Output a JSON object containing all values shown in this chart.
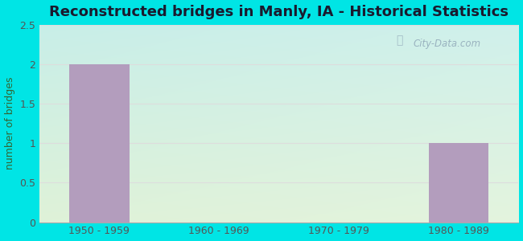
{
  "title": "Reconstructed bridges in Manly, IA - Historical Statistics",
  "categories": [
    "1950 - 1959",
    "1960 - 1969",
    "1970 - 1979",
    "1980 - 1989"
  ],
  "values": [
    2,
    0,
    0,
    1
  ],
  "bar_color": "#b39dbd",
  "ylabel": "number of bridges",
  "ylim": [
    0,
    2.5
  ],
  "yticks": [
    0,
    0.5,
    1,
    1.5,
    2,
    2.5
  ],
  "background_outer": "#00e5e5",
  "grad_top_left": "#c8eee8",
  "grad_bottom_right": "#dff2d8",
  "title_fontsize": 13,
  "ylabel_fontsize": 9,
  "tick_fontsize": 9,
  "title_color": "#1a1a2e",
  "ylabel_color": "#336633",
  "tick_color": "#555555",
  "watermark_text": "City-Data.com",
  "watermark_color": "#90a8b8",
  "grid_color": "#dddddd"
}
